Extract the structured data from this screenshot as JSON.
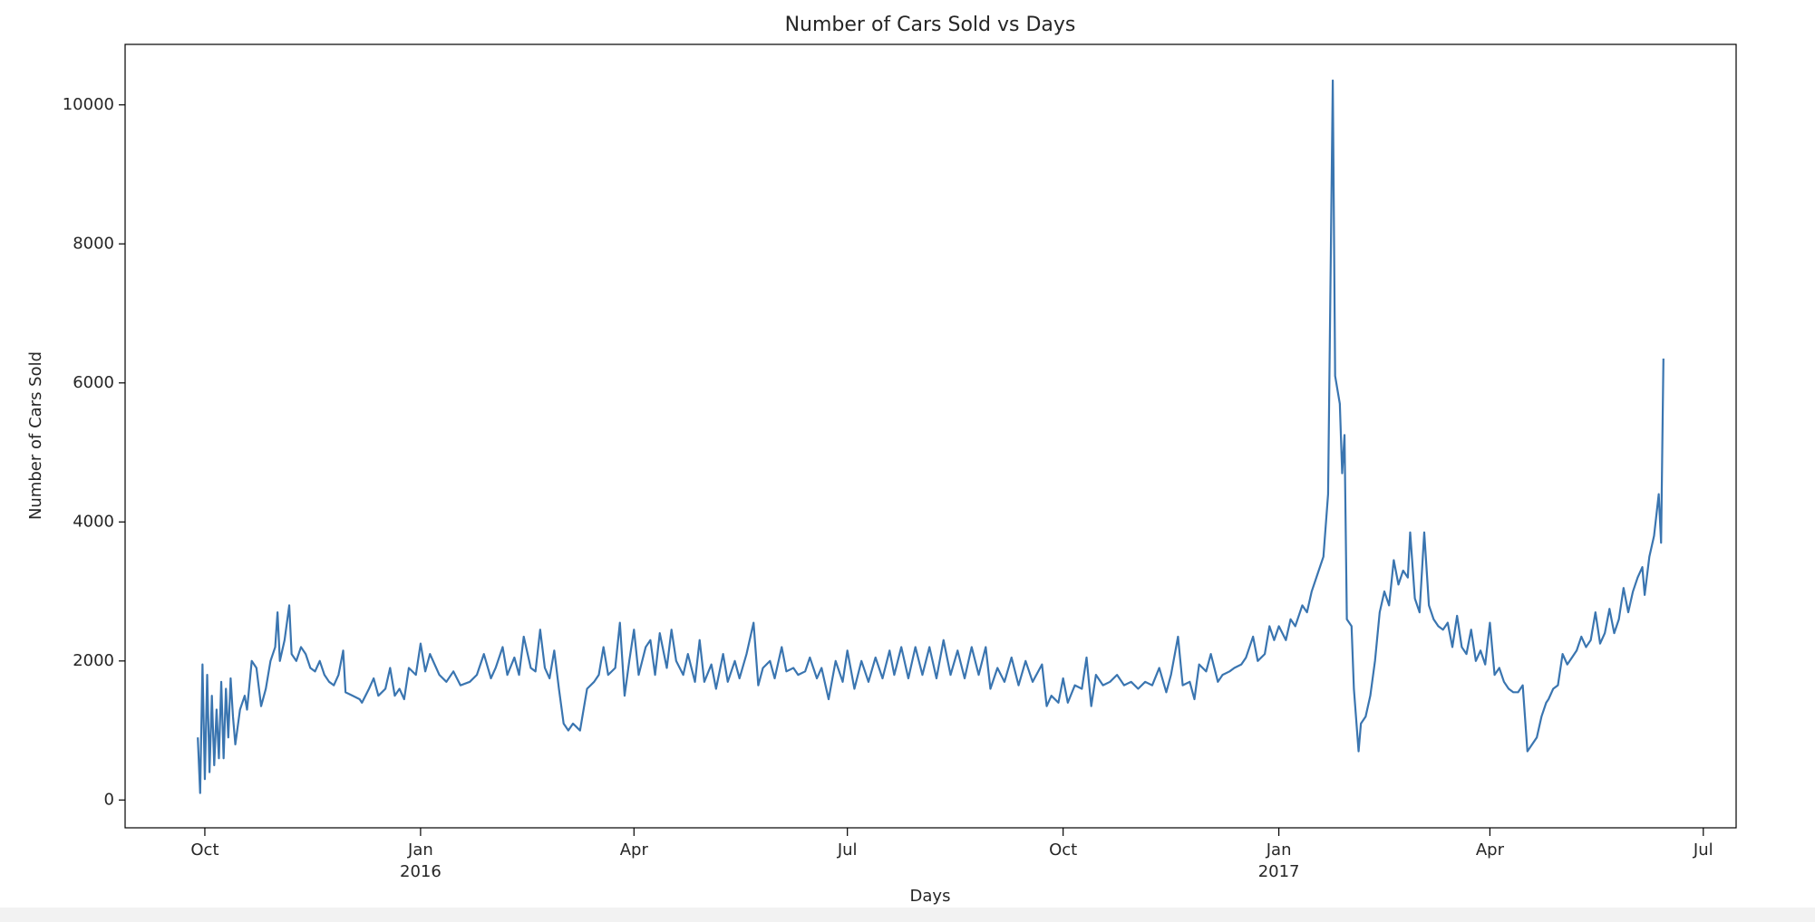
{
  "chart_data": {
    "type": "line",
    "title": "Number of Cars Sold vs Days",
    "x_label": "Days",
    "y_label": "Number of Cars Sold",
    "color": "#3a75b0",
    "xlim": [
      -126,
      561
    ],
    "xticks": [
      {
        "value": -92,
        "label": "Oct"
      },
      {
        "value": 0,
        "label": "Jan\n2016"
      },
      {
        "value": 91,
        "label": "Apr"
      },
      {
        "value": 182,
        "label": "Jul"
      },
      {
        "value": 274,
        "label": "Oct"
      },
      {
        "value": 366,
        "label": "Jan\n2017"
      },
      {
        "value": 456,
        "label": "Apr"
      },
      {
        "value": 547,
        "label": "Jul"
      }
    ],
    "ylim": [
      -400,
      10870
    ],
    "yticks": [
      0,
      2000,
      4000,
      6000,
      8000,
      10000
    ],
    "x": [
      -95,
      -94,
      -93,
      -92,
      -91,
      -90,
      -89,
      -88,
      -87,
      -86,
      -85,
      -84,
      -83,
      -82,
      -81,
      -80,
      -79,
      -77,
      -75,
      -74,
      -72,
      -70,
      -68,
      -66,
      -64,
      -62,
      -61,
      -60,
      -58,
      -56,
      -55,
      -53,
      -51,
      -49,
      -47,
      -45,
      -43,
      -41,
      -39,
      -37,
      -35,
      -33,
      -32,
      -29,
      -26,
      -25,
      -22,
      -20,
      -18,
      -15,
      -13,
      -11,
      -9,
      -7,
      -5,
      -2,
      0,
      2,
      4,
      6,
      8,
      11,
      14,
      17,
      21,
      24,
      27,
      30,
      32,
      35,
      37,
      40,
      42,
      44,
      47,
      49,
      51,
      53,
      55,
      57,
      59,
      61,
      63,
      65,
      68,
      71,
      74,
      76,
      78,
      80,
      83,
      85,
      87,
      89,
      91,
      93,
      96,
      98,
      100,
      102,
      105,
      107,
      109,
      112,
      114,
      117,
      119,
      121,
      124,
      126,
      129,
      131,
      134,
      136,
      139,
      142,
      144,
      146,
      149,
      151,
      154,
      156,
      159,
      161,
      164,
      166,
      169,
      171,
      174,
      177,
      180,
      182,
      185,
      188,
      191,
      194,
      197,
      200,
      202,
      205,
      208,
      211,
      214,
      217,
      220,
      223,
      226,
      229,
      232,
      235,
      238,
      241,
      243,
      246,
      249,
      252,
      255,
      258,
      261,
      265,
      267,
      269,
      272,
      274,
      276,
      279,
      282,
      284,
      286,
      288,
      291,
      294,
      297,
      300,
      303,
      306,
      309,
      312,
      315,
      318,
      320,
      323,
      325,
      328,
      330,
      332,
      335,
      337,
      340,
      342,
      345,
      347,
      350,
      352,
      355,
      357,
      360,
      362,
      364,
      366,
      369,
      371,
      373,
      376,
      378,
      380,
      383,
      385,
      387,
      389,
      390,
      392,
      393,
      394,
      395,
      397,
      398,
      400,
      401,
      403,
      405,
      407,
      409,
      411,
      413,
      415,
      417,
      419,
      421,
      422,
      424,
      426,
      428,
      430,
      432,
      434,
      436,
      438,
      440,
      442,
      444,
      446,
      448,
      450,
      452,
      454,
      456,
      458,
      460,
      462,
      464,
      466,
      468,
      470,
      472,
      474,
      476,
      478,
      480,
      481,
      483,
      485,
      487,
      489,
      491,
      493,
      495,
      497,
      499,
      501,
      503,
      505,
      507,
      509,
      511,
      513,
      515,
      517,
      519,
      521,
      522,
      524,
      526,
      528,
      529,
      530
    ],
    "values": [
      900,
      100,
      1950,
      300,
      1800,
      400,
      1500,
      500,
      1300,
      600,
      1700,
      600,
      1600,
      900,
      1750,
      1200,
      800,
      1300,
      1500,
      1300,
      2000,
      1900,
      1350,
      1600,
      2000,
      2200,
      2700,
      2000,
      2300,
      2800,
      2100,
      2000,
      2200,
      2100,
      1900,
      1850,
      2000,
      1800,
      1700,
      1650,
      1800,
      2150,
      1550,
      1500,
      1450,
      1400,
      1600,
      1750,
      1500,
      1600,
      1900,
      1500,
      1600,
      1450,
      1900,
      1800,
      2250,
      1850,
      2100,
      1950,
      1800,
      1700,
      1850,
      1650,
      1700,
      1800,
      2100,
      1750,
      1900,
      2200,
      1800,
      2050,
      1800,
      2350,
      1900,
      1850,
      2450,
      1900,
      1750,
      2150,
      1600,
      1100,
      1000,
      1100,
      1000,
      1600,
      1700,
      1800,
      2200,
      1800,
      1900,
      2550,
      1500,
      2000,
      2450,
      1800,
      2200,
      2300,
      1800,
      2400,
      1900,
      2450,
      2000,
      1800,
      2100,
      1700,
      2300,
      1700,
      1950,
      1600,
      2100,
      1700,
      2000,
      1750,
      2100,
      2550,
      1650,
      1900,
      2000,
      1750,
      2200,
      1850,
      1900,
      1800,
      1850,
      2050,
      1750,
      1900,
      1450,
      2000,
      1700,
      2150,
      1600,
      2000,
      1700,
      2050,
      1750,
      2150,
      1800,
      2200,
      1750,
      2200,
      1800,
      2200,
      1750,
      2300,
      1800,
      2150,
      1750,
      2200,
      1800,
      2200,
      1600,
      1900,
      1700,
      2050,
      1650,
      2000,
      1700,
      1950,
      1350,
      1500,
      1400,
      1750,
      1400,
      1650,
      1600,
      2050,
      1350,
      1800,
      1650,
      1700,
      1800,
      1650,
      1700,
      1600,
      1700,
      1650,
      1900,
      1550,
      1800,
      2350,
      1650,
      1700,
      1450,
      1950,
      1850,
      2100,
      1700,
      1800,
      1850,
      1900,
      1950,
      2050,
      2350,
      2000,
      2100,
      2500,
      2300,
      2500,
      2300,
      2600,
      2500,
      2800,
      2700,
      3000,
      3300,
      3500,
      4400,
      10350,
      6100,
      5700,
      4700,
      5250,
      2600,
      2500,
      1600,
      700,
      1100,
      1200,
      1500,
      2000,
      2700,
      3000,
      2800,
      3450,
      3100,
      3300,
      3200,
      3850,
      2900,
      2700,
      3850,
      2800,
      2600,
      2500,
      2450,
      2550,
      2200,
      2650,
      2200,
      2100,
      2450,
      2000,
      2150,
      1950,
      2550,
      1800,
      1900,
      1700,
      1600,
      1550,
      1550,
      1650,
      700,
      800,
      900,
      1200,
      1400,
      1450,
      1600,
      1650,
      2100,
      1950,
      2050,
      2150,
      2350,
      2200,
      2300,
      2700,
      2250,
      2400,
      2750,
      2400,
      2600,
      3050,
      2700,
      3000,
      3200,
      3350,
      2950,
      3500,
      3800,
      4400,
      3700,
      6350
    ]
  }
}
